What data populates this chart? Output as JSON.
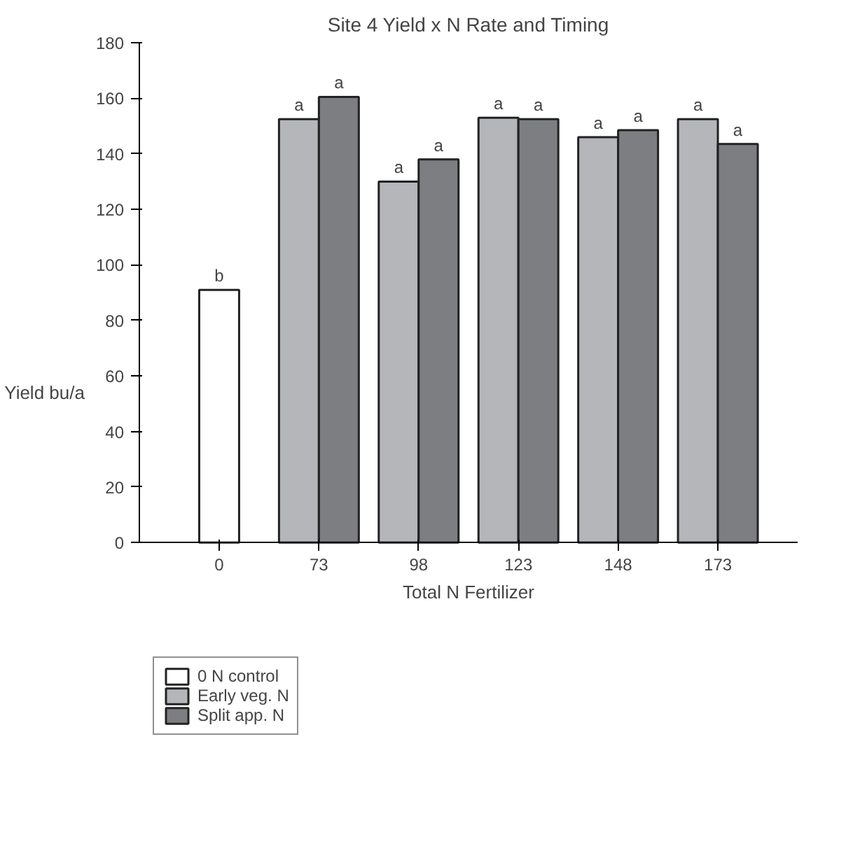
{
  "chart_data": {
    "type": "bar",
    "title": "Site 4 Yield x N Rate and Timing",
    "xlabel": "Total N Fertilizer",
    "ylabel": "Yield bu/a",
    "categories": [
      "0",
      "73",
      "98",
      "123",
      "148",
      "173"
    ],
    "series": [
      {
        "name": "0 N control",
        "color": "#ffffff",
        "values": [
          91,
          null,
          null,
          null,
          null,
          null
        ],
        "value_labels": [
          "b",
          null,
          null,
          null,
          null,
          null
        ]
      },
      {
        "name": "Early veg. N",
        "color": "#b4b6b9",
        "values": [
          null,
          152.5,
          130,
          153,
          146,
          152.5
        ],
        "value_labels": [
          null,
          "a",
          "a",
          "a",
          "a",
          "a"
        ]
      },
      {
        "name": "Split app. N",
        "color": "#7c7e82",
        "values": [
          null,
          160.5,
          138,
          152.5,
          148.5,
          143.5
        ],
        "value_labels": [
          null,
          "a",
          "a",
          "a",
          "a",
          "a"
        ]
      }
    ],
    "ylim": [
      0,
      180
    ],
    "yticks": [
      0,
      20,
      40,
      60,
      80,
      100,
      120,
      140,
      160,
      180
    ],
    "grid": false,
    "legend": "bottom left"
  }
}
